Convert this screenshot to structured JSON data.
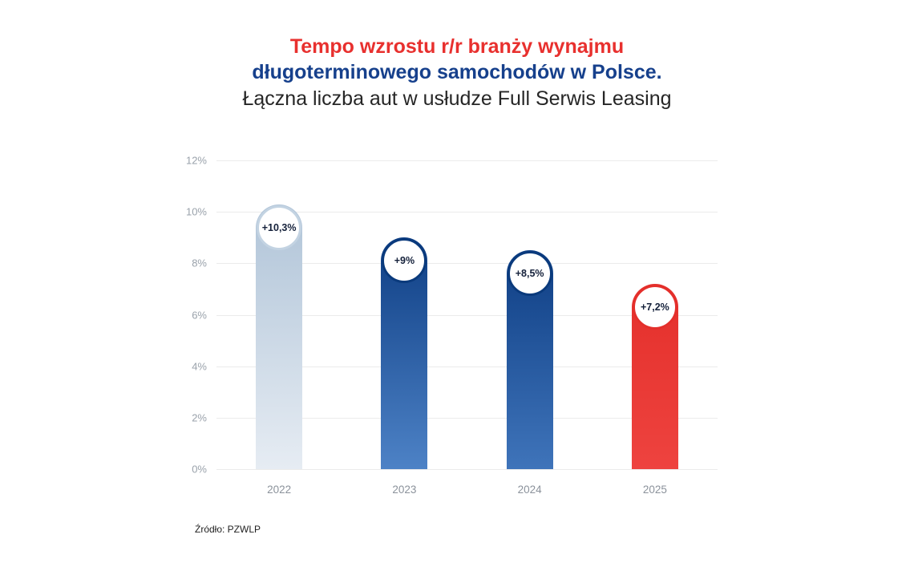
{
  "title": {
    "line1": "Tempo wzrostu r/r branży wynajmu",
    "line2": "długoterminowego samochodów w Polsce.",
    "line3": "Łączna liczba aut w usłudze Full Serwis Leasing"
  },
  "source_label": "Źródło: PZWLP",
  "chart_data": {
    "type": "bar",
    "title": "Tempo wzrostu r/r branży wynajmu długoterminowego samochodów w Polsce. Łączna liczba aut w usłudze Full Serwis Leasing",
    "categories": [
      "2022",
      "2023",
      "2024",
      "2025"
    ],
    "values": [
      10.3,
      9,
      8.5,
      7.2
    ],
    "value_labels": [
      "+10,3%",
      "+9%",
      "+8,5%",
      "+7,2%"
    ],
    "ylim": [
      0,
      12
    ],
    "ytick_labels": [
      "12%",
      "10%",
      "8%",
      "6%",
      "4%",
      "2%",
      "0%"
    ],
    "grid": true,
    "legend": false,
    "bar_styles": [
      {
        "gradient_top": "#b0c4d8",
        "gradient_bottom": "#e6ecf3",
        "circle_border": "#c3d3e2"
      },
      {
        "gradient_top": "#0e3e84",
        "gradient_bottom": "#4d82c6",
        "circle_border": "#0a3a7c"
      },
      {
        "gradient_top": "#0e3e84",
        "gradient_bottom": "#3f74ba",
        "circle_border": "#0a3a7c"
      },
      {
        "gradient_top": "#e42f2b",
        "gradient_bottom": "#ee433f",
        "circle_border": "#e42f2b"
      }
    ],
    "value_label_color": "#15213b",
    "colors": {
      "title_red": "#e8302e",
      "title_navy": "#16408c",
      "axis_text": "#9aa2ab",
      "gridline": "#ebebeb"
    }
  }
}
